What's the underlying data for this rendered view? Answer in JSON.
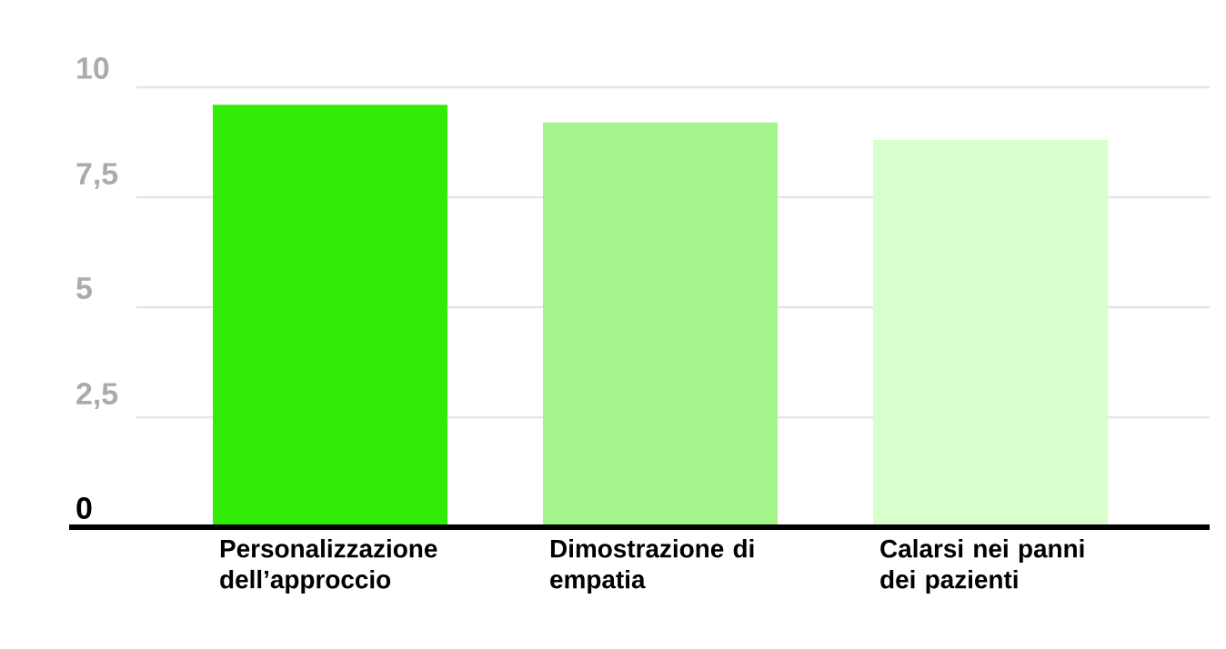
{
  "chart_data": {
    "type": "bar",
    "categories": [
      "Personalizzazione dell’approccio",
      "Dimostrazione di empatia",
      "Calarsi nei panni dei pazienti"
    ],
    "values": [
      9.6,
      9.2,
      8.8
    ],
    "colors": [
      "#33ec06",
      "#a3f48a",
      "#d9ffcc"
    ],
    "ylim": [
      0,
      10
    ],
    "yticks": [
      0,
      {
        "value": 2.5,
        "label": "2,5"
      },
      5,
      {
        "value": 7.5,
        "label": "7,5"
      },
      10
    ],
    "grid": "y"
  }
}
